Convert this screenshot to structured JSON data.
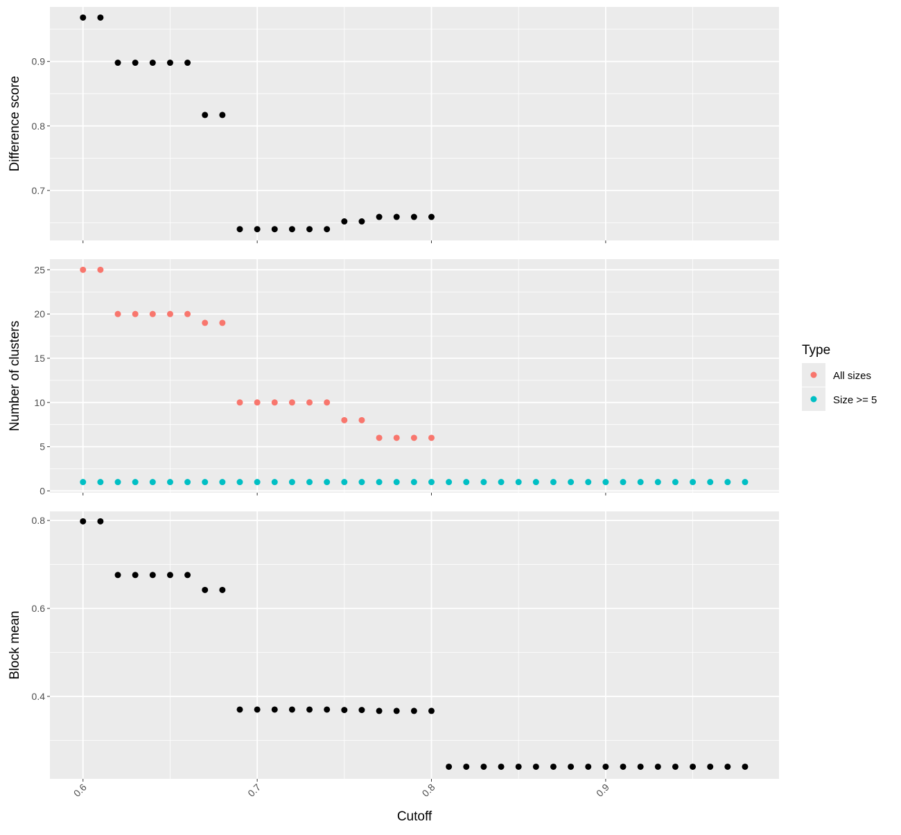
{
  "chart_data": {
    "type": "scatter",
    "xlabel": "Cutoff",
    "x_ticks": [
      0.6,
      0.7,
      0.8,
      0.9
    ],
    "x_tick_labels": [
      "0.6",
      "0.7",
      "0.8",
      "0.9"
    ],
    "xlim": [
      0.581,
      0.9995
    ],
    "grid": true,
    "legend": {
      "title": "Type",
      "position": "right",
      "entries": [
        {
          "label": "All sizes",
          "color": "#F8766D"
        },
        {
          "label": "Size >= 5",
          "color": "#00BFC4"
        }
      ]
    },
    "panels": [
      {
        "ylabel": "Difference score",
        "ylim": [
          0.6225,
          0.9845
        ],
        "y_ticks": [
          0.7,
          0.8,
          0.9
        ],
        "y_tick_labels": [
          "0.7",
          "0.8",
          "0.9"
        ],
        "series": [
          {
            "color": "#000000",
            "x": [
              0.6,
              0.61,
              0.62,
              0.63,
              0.64,
              0.65,
              0.66,
              0.67,
              0.68,
              0.69,
              0.7,
              0.71,
              0.72,
              0.73,
              0.74,
              0.75,
              0.76,
              0.77,
              0.78,
              0.79,
              0.8
            ],
            "y": [
              0.968,
              0.968,
              0.898,
              0.898,
              0.898,
              0.898,
              0.898,
              0.817,
              0.817,
              0.64,
              0.64,
              0.64,
              0.64,
              0.64,
              0.64,
              0.652,
              0.652,
              0.659,
              0.659,
              0.659,
              0.659
            ]
          }
        ]
      },
      {
        "ylabel": "Number of clusters",
        "ylim": [
          -0.2,
          26.2
        ],
        "y_ticks": [
          0,
          5,
          10,
          15,
          20,
          25
        ],
        "y_tick_labels": [
          "0",
          "5",
          "10",
          "15",
          "20",
          "25"
        ],
        "series": [
          {
            "name": "All sizes",
            "color": "#F8766D",
            "x": [
              0.6,
              0.61,
              0.62,
              0.63,
              0.64,
              0.65,
              0.66,
              0.67,
              0.68,
              0.69,
              0.7,
              0.71,
              0.72,
              0.73,
              0.74,
              0.75,
              0.76,
              0.77,
              0.78,
              0.79,
              0.8
            ],
            "y": [
              25,
              25,
              20,
              20,
              20,
              20,
              20,
              19,
              19,
              10,
              10,
              10,
              10,
              10,
              10,
              8,
              8,
              6,
              6,
              6,
              6
            ]
          },
          {
            "name": "Size >= 5",
            "color": "#00BFC4",
            "x": [
              0.6,
              0.61,
              0.62,
              0.63,
              0.64,
              0.65,
              0.66,
              0.67,
              0.68,
              0.69,
              0.7,
              0.71,
              0.72,
              0.73,
              0.74,
              0.75,
              0.76,
              0.77,
              0.78,
              0.79,
              0.8,
              0.81,
              0.82,
              0.83,
              0.84,
              0.85,
              0.86,
              0.87,
              0.88,
              0.89,
              0.9,
              0.91,
              0.92,
              0.93,
              0.94,
              0.95,
              0.96,
              0.97,
              0.98
            ],
            "y": [
              1,
              1,
              1,
              1,
              1,
              1,
              1,
              1,
              1,
              1,
              1,
              1,
              1,
              1,
              1,
              1,
              1,
              1,
              1,
              1,
              1,
              1,
              1,
              1,
              1,
              1,
              1,
              1,
              1,
              1,
              1,
              1,
              1,
              1,
              1,
              1,
              1,
              1,
              1
            ]
          }
        ]
      },
      {
        "ylabel": "Block mean",
        "ylim": [
          0.2124,
          0.8206
        ],
        "y_ticks": [
          0.4,
          0.6,
          0.8
        ],
        "y_tick_labels": [
          "0.4",
          "0.6",
          "0.8"
        ],
        "series": [
          {
            "color": "#000000",
            "x": [
              0.6,
              0.61,
              0.62,
              0.63,
              0.64,
              0.65,
              0.66,
              0.67,
              0.68,
              0.69,
              0.7,
              0.71,
              0.72,
              0.73,
              0.74,
              0.75,
              0.76,
              0.77,
              0.78,
              0.79,
              0.8,
              0.81,
              0.82,
              0.83,
              0.84,
              0.85,
              0.86,
              0.87,
              0.88,
              0.89,
              0.9,
              0.91,
              0.92,
              0.93,
              0.94,
              0.95,
              0.96,
              0.97,
              0.98
            ],
            "y": [
              0.798,
              0.798,
              0.676,
              0.676,
              0.676,
              0.676,
              0.676,
              0.642,
              0.642,
              0.37,
              0.37,
              0.37,
              0.37,
              0.37,
              0.37,
              0.369,
              0.369,
              0.367,
              0.367,
              0.367,
              0.367,
              0.24,
              0.24,
              0.24,
              0.24,
              0.24,
              0.24,
              0.24,
              0.24,
              0.24,
              0.24,
              0.24,
              0.24,
              0.24,
              0.24,
              0.24,
              0.24,
              0.24,
              0.24
            ]
          }
        ]
      }
    ]
  }
}
